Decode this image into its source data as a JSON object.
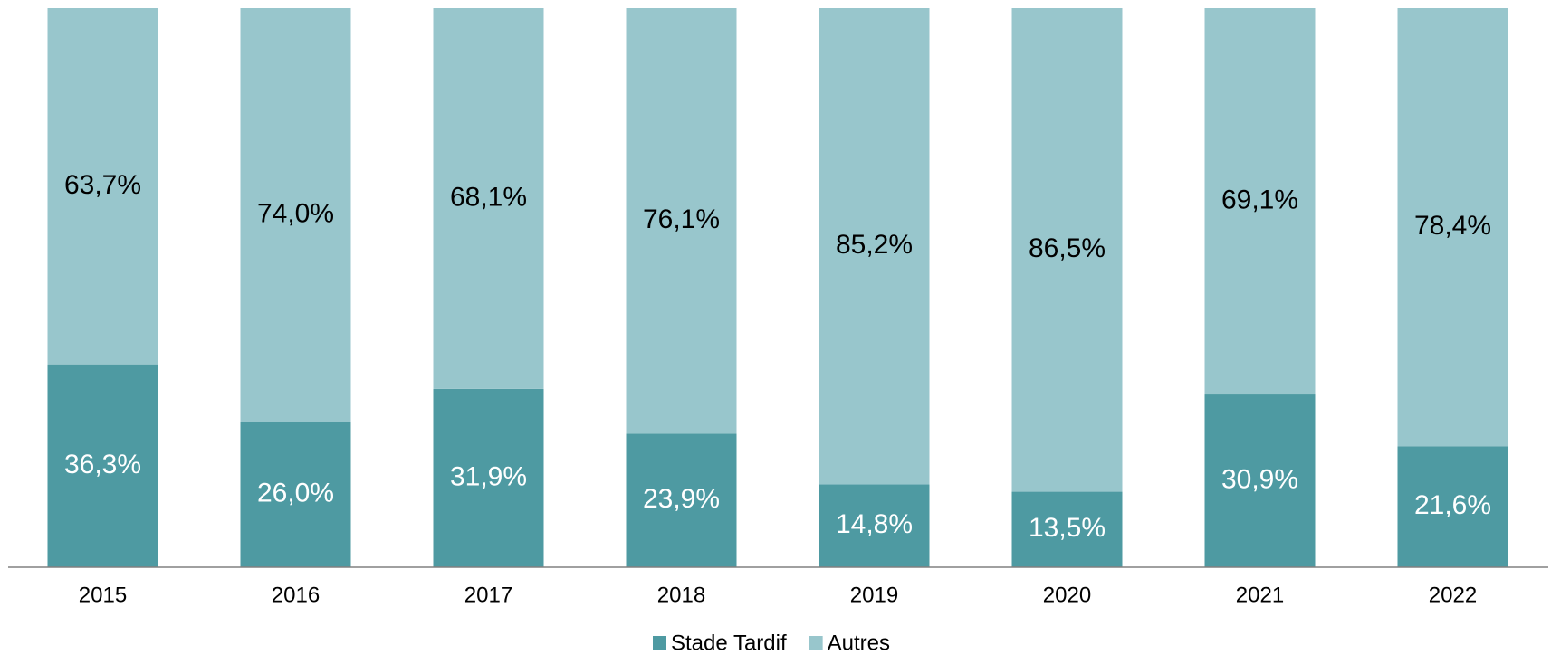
{
  "chart_data": {
    "type": "stacked_bar",
    "categories": [
      "2015",
      "2016",
      "2017",
      "2018",
      "2019",
      "2020",
      "2021",
      "2022"
    ],
    "ylim": [
      0,
      100
    ],
    "legend": "bottom",
    "series": [
      {
        "name": "Stade Tardif",
        "color": "#4e9aa2",
        "label_color": "#ffffff",
        "values": [
          36.3,
          26.0,
          31.9,
          23.9,
          14.8,
          13.5,
          30.9,
          21.6
        ],
        "value_labels": [
          "36,3%",
          "26,0%",
          "31,9%",
          "23,9%",
          "14,8%",
          "13,5%",
          "30,9%",
          "21,6%"
        ]
      },
      {
        "name": "Autres",
        "color": "#98c6cc",
        "label_color": "#000000",
        "values": [
          63.7,
          74.0,
          68.1,
          76.1,
          85.2,
          86.5,
          69.1,
          78.4
        ],
        "value_labels": [
          "63,7%",
          "74,0%",
          "68,1%",
          "76,1%",
          "85,2%",
          "86,5%",
          "69,1%",
          "78,4%"
        ]
      }
    ]
  }
}
